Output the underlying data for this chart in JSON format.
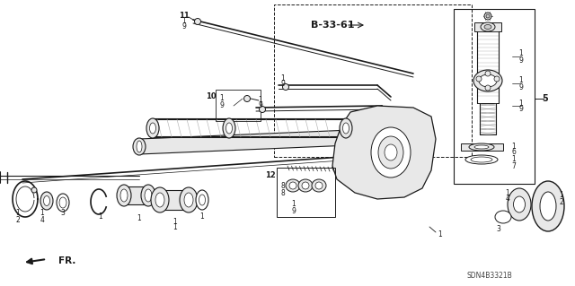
{
  "background_color": "#ffffff",
  "ref_label": "B-33-61",
  "part_number": "SDN4B3321B",
  "fr_label": "FR.",
  "fig_width": 6.4,
  "fig_height": 3.19,
  "dpi": 100,
  "line_color": "#1a1a1a",
  "gray_fill": "#cccccc",
  "light_gray": "#e8e8e8"
}
